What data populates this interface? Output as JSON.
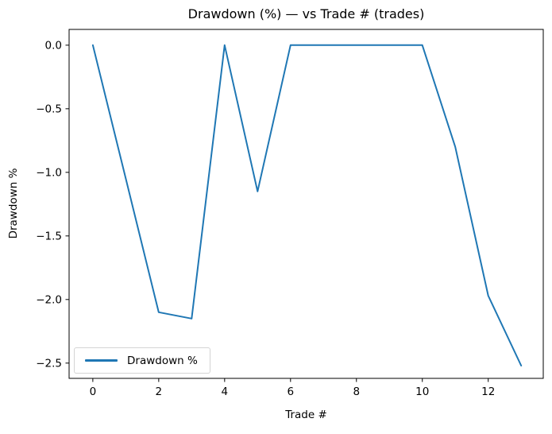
{
  "chart_data": {
    "type": "line",
    "title": "Drawdown (%) — vs Trade # (trades)",
    "xlabel": "Trade #",
    "ylabel": "Drawdown %",
    "x": [
      0,
      1,
      2,
      3,
      4,
      5,
      6,
      7,
      8,
      9,
      10,
      11,
      12,
      13
    ],
    "series": [
      {
        "name": "Drawdown %",
        "color": "#1f77b4",
        "values": [
          0.0,
          -1.05,
          -2.1,
          -2.15,
          0.0,
          -1.15,
          0.0,
          0.0,
          0.0,
          0.0,
          0.0,
          -0.8,
          -1.97,
          -2.52
        ]
      }
    ],
    "xlim": [
      -0.72,
      13.67
    ],
    "ylim": [
      -2.62,
      0.124
    ],
    "xticks": [
      0,
      2,
      4,
      6,
      8,
      10,
      12
    ],
    "xtick_labels": [
      "0",
      "2",
      "4",
      "6",
      "8",
      "10",
      "12"
    ],
    "yticks": [
      0.0,
      -0.5,
      -1.0,
      -1.5,
      -2.0,
      -2.5
    ],
    "ytick_labels": [
      "0.0",
      "−0.5",
      "−1.0",
      "−1.5",
      "−2.0",
      "−2.5"
    ],
    "grid": false,
    "legend": {
      "position": "lower left",
      "entries": [
        "Drawdown %"
      ]
    },
    "axis_color": "#000000",
    "background_color": "#ffffff"
  }
}
